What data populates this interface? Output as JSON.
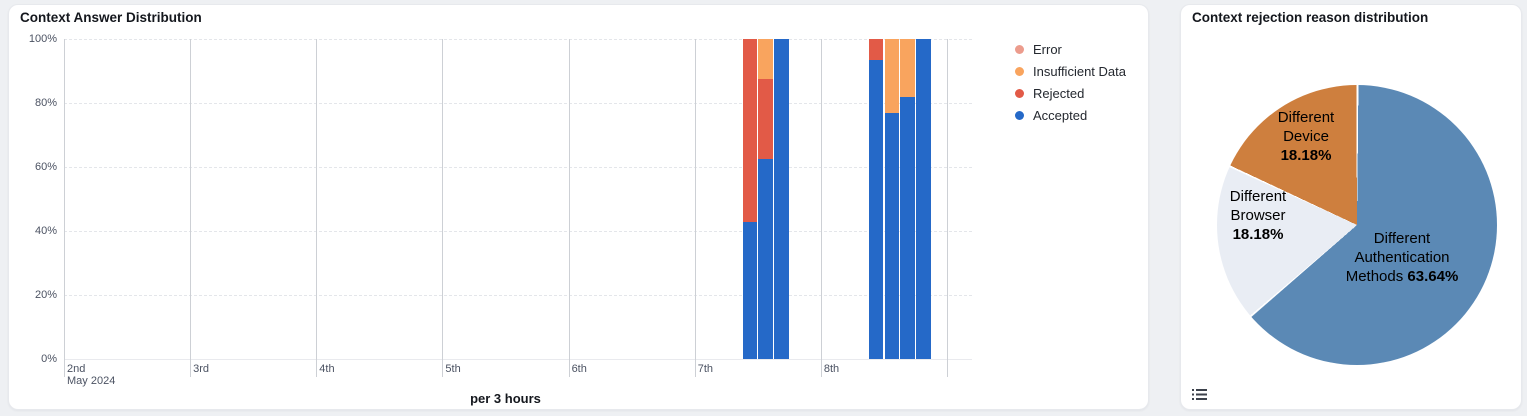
{
  "page": {
    "background": "#eef0f3"
  },
  "left_panel": {
    "title": "Context Answer Distribution",
    "x_axis_title": "per 3 hours"
  },
  "right_panel": {
    "title": "Context rejection reason distribution",
    "menu_icon": "list-icon"
  },
  "chart_data": [
    {
      "type": "bar",
      "variant": "100pct-stacked-time-series",
      "title": "Context Answer Distribution",
      "xlabel": "per 3 hours",
      "ylabel": "",
      "ylim": [
        0,
        100
      ],
      "y_ticks": [
        "0%",
        "20%",
        "40%",
        "60%",
        "80%",
        "100%"
      ],
      "grid": "horizontal-dashed, vertical-solid-per-day",
      "x_day_ticks": [
        "2nd",
        "3rd",
        "4th",
        "5th",
        "6th",
        "7th",
        "8th"
      ],
      "x_first_tick_subline": "May 2024",
      "slots_per_day": 8,
      "total_slots": 56,
      "legend_position": "right",
      "legend": [
        "Error",
        "Insufficient Data",
        "Rejected",
        "Accepted"
      ],
      "series_colors": {
        "Error": "#ec9c8d",
        "Insufficient Data": "#f9a45e",
        "Rejected": "#e25a47",
        "Accepted": "#2569c8"
      },
      "bars": [
        {
          "time": "May 7 09:00",
          "slot": 43,
          "Accepted": 42.9,
          "Rejected": 57.1,
          "Insufficient Data": 0,
          "Error": 0
        },
        {
          "time": "May 7 12:00",
          "slot": 44,
          "Accepted": 62.5,
          "Rejected": 25.0,
          "Insufficient Data": 12.5,
          "Error": 0
        },
        {
          "time": "May 7 15:00",
          "slot": 45,
          "Accepted": 100,
          "Rejected": 0,
          "Insufficient Data": 0,
          "Error": 0
        },
        {
          "time": "May 8 09:00",
          "slot": 51,
          "Accepted": 93.3,
          "Rejected": 6.7,
          "Insufficient Data": 0,
          "Error": 0
        },
        {
          "time": "May 8 12:00",
          "slot": 52,
          "Accepted": 77.0,
          "Rejected": 0,
          "Insufficient Data": 23.0,
          "Error": 0
        },
        {
          "time": "May 8 15:00",
          "slot": 53,
          "Accepted": 82.0,
          "Rejected": 0,
          "Insufficient Data": 18.0,
          "Error": 0
        },
        {
          "time": "May 8 18:00",
          "slot": 54,
          "Accepted": 100,
          "Rejected": 0,
          "Insufficient Data": 0,
          "Error": 0
        }
      ]
    },
    {
      "type": "pie",
      "title": "Context rejection reason distribution",
      "start_angle": "12-oclock",
      "direction": "clockwise",
      "legend_position": "none",
      "slices": [
        {
          "label": "Different Authentication Methods",
          "value": 63.64,
          "color": "#5b89b5",
          "name_lines": [
            "Different",
            "Authentication"
          ],
          "pct_prefix": "Methods ",
          "pct_text": "63.64%"
        },
        {
          "label": "Different Browser",
          "value": 18.18,
          "color": "#e9edf4",
          "name_lines": [
            "Different",
            "Browser"
          ],
          "pct_prefix": "",
          "pct_text": "18.18%"
        },
        {
          "label": "Different Device",
          "value": 18.18,
          "color": "#ce7f3e",
          "name_lines": [
            "Different",
            "Device"
          ],
          "pct_prefix": "",
          "pct_text": "18.18%"
        }
      ]
    }
  ]
}
